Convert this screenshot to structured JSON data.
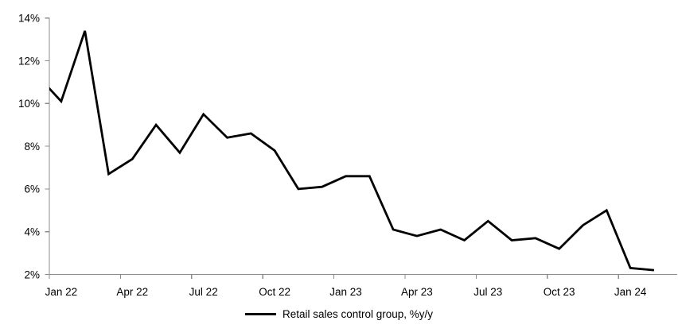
{
  "chart_data": {
    "type": "line",
    "categories": [
      "Jan 22",
      "Feb 22",
      "Mar 22",
      "Apr 22",
      "May 22",
      "Jun 22",
      "Jul 22",
      "Aug 22",
      "Sep 22",
      "Oct 22",
      "Nov 22",
      "Dec 22",
      "Jan 23",
      "Feb 23",
      "Mar 23",
      "Apr 23",
      "May 23",
      "Jun 23",
      "Jul 23",
      "Aug 23",
      "Sep 23",
      "Oct 23",
      "Nov 23",
      "Dec 23",
      "Jan 24",
      "Feb 24"
    ],
    "series": [
      {
        "name": "Retail sales control group, %y/y",
        "values": [
          10.1,
          13.4,
          6.7,
          7.4,
          9.0,
          7.7,
          9.5,
          8.4,
          8.6,
          7.8,
          6.0,
          6.1,
          6.6,
          6.6,
          4.1,
          3.8,
          4.1,
          3.6,
          4.5,
          3.6,
          3.7,
          3.2,
          4.3,
          5.0,
          2.3,
          2.2
        ],
        "color": "#000000"
      }
    ],
    "lead_in_point": {
      "label": "Dec 21",
      "value": 11.3,
      "note": "line enters plot clipped at the left axis"
    },
    "ylim": [
      2,
      14
    ],
    "y_ticks": [
      {
        "value": 14,
        "label": "14%"
      },
      {
        "value": 12,
        "label": "12%"
      },
      {
        "value": 10,
        "label": "10%"
      },
      {
        "value": 8,
        "label": "8%"
      },
      {
        "value": 6,
        "label": "6%"
      },
      {
        "value": 4,
        "label": "4%"
      },
      {
        "value": 2,
        "label": "2%"
      }
    ],
    "x_tick_labels": [
      "Jan 22",
      "Apr 22",
      "Jul 22",
      "Oct 22",
      "Jan 23",
      "Apr 23",
      "Jul 23",
      "Oct 23",
      "Jan 24"
    ],
    "x_tick_interval": 3,
    "grid": "off",
    "legend_position": "bottom",
    "colors": {
      "axis": "#8C8C8C",
      "text": "#000000",
      "series": "#000000",
      "background": "#FFFFFF"
    }
  }
}
